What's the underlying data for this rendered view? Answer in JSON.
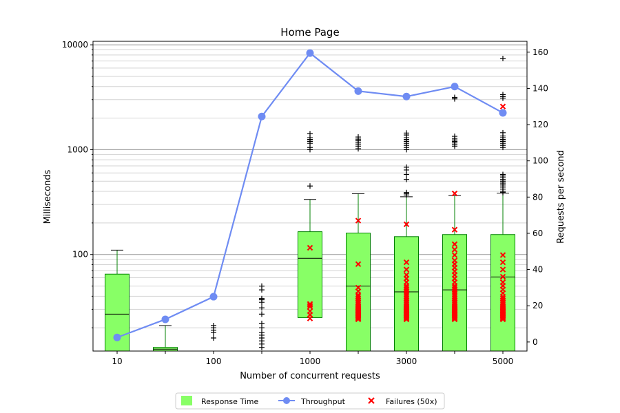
{
  "chart_data": {
    "type": "box-line-combo",
    "title": "Home Page",
    "xlabel": "Number of concurrent requests",
    "ylabel_left": "Milliseconds",
    "ylabel_right": "Requests per second",
    "left_scale": "log",
    "left_range": [
      12,
      10800
    ],
    "right_range": [
      -5,
      166
    ],
    "left_ticks": [
      {
        "v": 100,
        "label": "100"
      },
      {
        "v": 1000,
        "label": "1000"
      },
      {
        "v": 10000,
        "label": "10000"
      }
    ],
    "right_ticks": [
      0,
      20,
      40,
      60,
      80,
      100,
      120,
      140,
      160
    ],
    "categories": [
      "10",
      "",
      "100",
      "",
      "1000",
      "",
      "3000",
      "",
      "5000"
    ],
    "grid": "horizontal",
    "legend_position": "bottom-center",
    "colors": {
      "box_fill": "#88ff66",
      "box_edge": "#008000",
      "line": "#6f8cf3",
      "failure": "#ff0000",
      "grid_major": "#999999",
      "grid_minor": "#d3d3d3"
    },
    "legend": [
      {
        "kind": "box",
        "label": "Response Time"
      },
      {
        "kind": "line",
        "label": "Throughput"
      },
      {
        "kind": "cross",
        "label": "Failures (50x)"
      }
    ],
    "boxes": [
      {
        "q1": 12,
        "median": 27,
        "q3": 65,
        "whislo": 12,
        "whishi": 110,
        "fliers": []
      },
      {
        "q1": 12,
        "median": 12.5,
        "q3": 13,
        "whislo": 12,
        "whishi": 21,
        "fliers": []
      },
      {
        "q1": null,
        "median": null,
        "q3": null,
        "whislo": null,
        "whishi": null,
        "fliers": [
          16,
          18,
          19,
          20,
          21
        ]
      },
      {
        "q1": null,
        "median": null,
        "q3": null,
        "whislo": null,
        "whishi": null,
        "fliers": [
          13,
          14,
          15,
          16,
          17,
          18,
          20,
          22,
          27,
          31,
          35,
          37,
          38,
          46,
          50
        ]
      },
      {
        "q1": 25,
        "median": 92,
        "q3": 165,
        "whislo": 12,
        "whishi": 335,
        "fliers": [
          450,
          1000,
          1050,
          1150,
          1200,
          1250,
          1300,
          1420
        ]
      },
      {
        "q1": 12,
        "median": 50,
        "q3": 160,
        "whislo": 12,
        "whishi": 380,
        "fliers": [
          1020,
          1080,
          1130,
          1180,
          1220,
          1260,
          1320
        ]
      },
      {
        "q1": 12,
        "median": 44,
        "q3": 148,
        "whislo": 12,
        "whishi": 355,
        "fliers": [
          370,
          380,
          390,
          520,
          580,
          640,
          680,
          1000,
          1050,
          1100,
          1150,
          1200,
          1250,
          1300,
          1380,
          1440
        ]
      },
      {
        "q1": 12,
        "median": 46,
        "q3": 155,
        "whislo": 12,
        "whishi": 365,
        "fliers": [
          1080,
          1120,
          1160,
          1200,
          1240,
          1280,
          1340,
          3050,
          3150
        ]
      },
      {
        "q1": 12,
        "median": 61,
        "q3": 155,
        "whislo": 12,
        "whishi": 385,
        "fliers": [
          390,
          400,
          420,
          440,
          460,
          480,
          500,
          520,
          540,
          560,
          580,
          1050,
          1100,
          1150,
          1200,
          1250,
          1300,
          1350,
          1450,
          3100,
          3200,
          3350,
          7400
        ]
      }
    ],
    "throughput": [
      2.5,
      12.5,
      25,
      124.5,
      159.5,
      138.5,
      135.5,
      141,
      126.5
    ],
    "failures": [
      [],
      [],
      [],
      [],
      [
        13,
        15,
        17,
        19.5,
        20.5,
        21,
        52
      ],
      [
        12.5,
        13,
        13.5,
        14,
        14.5,
        15,
        15.5,
        16,
        16.5,
        17,
        17.5,
        18,
        18.5,
        19,
        19.5,
        20,
        21,
        22,
        23,
        24,
        25,
        26,
        28,
        30,
        43,
        67
      ],
      [
        12.5,
        13,
        13.5,
        14,
        14.5,
        15,
        15.5,
        16,
        16.5,
        17,
        17.5,
        18,
        18.5,
        19,
        19.5,
        20,
        21,
        22,
        23,
        24,
        25,
        26,
        27,
        28,
        29,
        30,
        31,
        33,
        35,
        37,
        40,
        44,
        65
      ],
      [
        12.5,
        13,
        13.5,
        14,
        14.5,
        15,
        15.5,
        16,
        16.5,
        17,
        17.5,
        18,
        18.5,
        19,
        19.5,
        20,
        21,
        22,
        23,
        24,
        25,
        26,
        27,
        28,
        29,
        30,
        31,
        33,
        35,
        37,
        39,
        41,
        43,
        45,
        48,
        51,
        54,
        62,
        82
      ],
      [
        12.5,
        13,
        13.5,
        14,
        14.5,
        15,
        15.5,
        16,
        16.5,
        17,
        17.5,
        18,
        18.5,
        19,
        19.5,
        20,
        21,
        22,
        23,
        24,
        25,
        27,
        29,
        31,
        33,
        36,
        40,
        44,
        48,
        130
      ]
    ]
  }
}
